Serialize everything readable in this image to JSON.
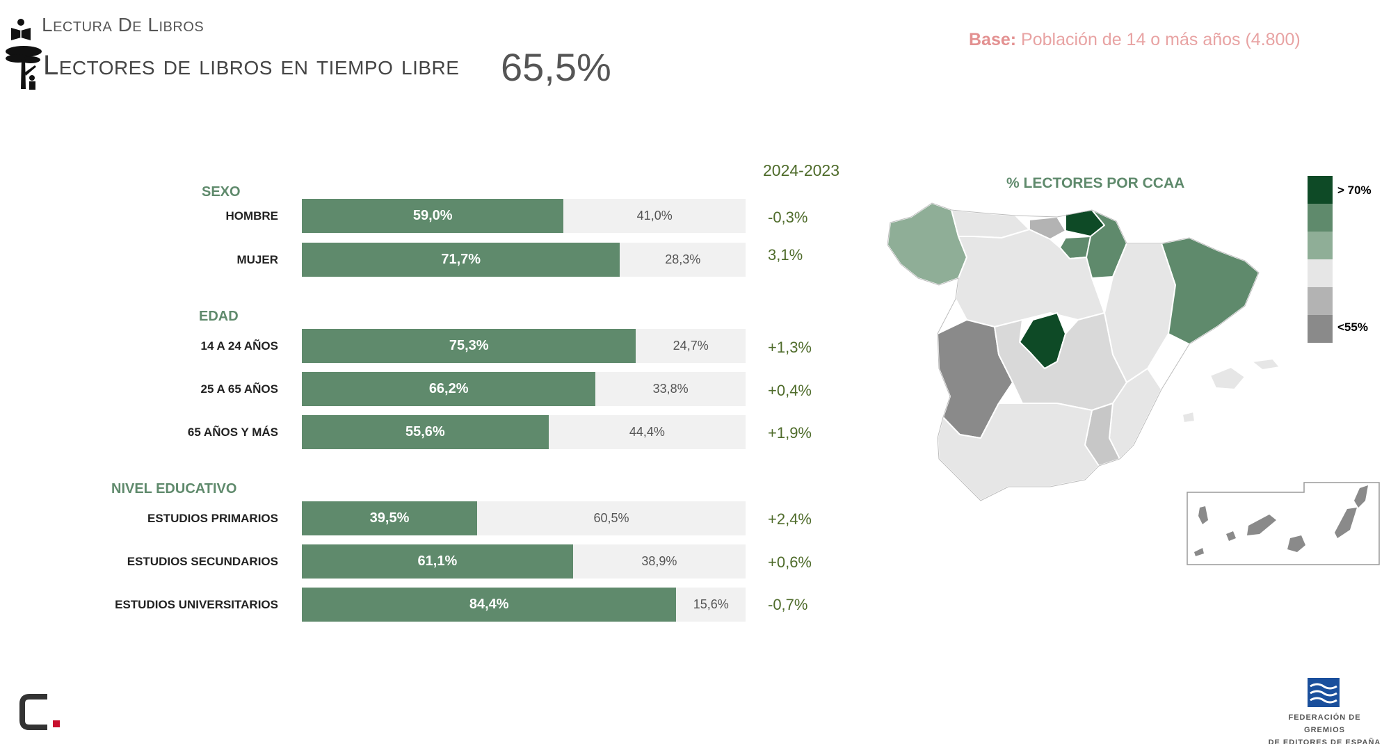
{
  "header": {
    "subtitle": "Lectura De Libros",
    "title": "Lectores de libros en tiempo libre",
    "total": "65,5%",
    "base_label": "Base:",
    "base_text": "Población de 14 o más años (4.800)"
  },
  "period_label": "2024-2023",
  "chart_data": {
    "type": "bar",
    "orientation": "horizontal",
    "stacked": true,
    "title": "Lectores de libros en tiempo libre",
    "groups": [
      {
        "name": "SEXO",
        "rows": [
          {
            "label": "HOMBRE",
            "value": 59.0,
            "value_label": "59,0%",
            "rest_label": "41,0%",
            "change": "-0,3%"
          },
          {
            "label": "MUJER",
            "value": 71.7,
            "value_label": "71,7%",
            "rest_label": "28,3%",
            "change": "3,1%"
          }
        ]
      },
      {
        "name": "EDAD",
        "rows": [
          {
            "label": "14 A 24 AÑOS",
            "value": 75.3,
            "value_label": "75,3%",
            "rest_label": "24,7%",
            "change": "+1,3%"
          },
          {
            "label": "25 A 65 AÑOS",
            "value": 66.2,
            "value_label": "66,2%",
            "rest_label": "33,8%",
            "change": "+0,4%"
          },
          {
            "label": "65 AÑOS Y MÁS",
            "value": 55.6,
            "value_label": "55,6%",
            "rest_label": "44,4%",
            "change": "+1,9%"
          }
        ]
      },
      {
        "name": "NIVEL EDUCATIVO",
        "rows": [
          {
            "label": "ESTUDIOS PRIMARIOS",
            "value": 39.5,
            "value_label": "39,5%",
            "rest_label": "60,5%",
            "change": "+2,4%"
          },
          {
            "label": "ESTUDIOS SECUNDARIOS",
            "value": 61.1,
            "value_label": "61,1%",
            "rest_label": "38,9%",
            "change": "+0,6%"
          },
          {
            "label": "ESTUDIOS UNIVERSITARIOS",
            "value": 84.4,
            "value_label": "84,4%",
            "rest_label": "15,6%",
            "change": "-0,7%"
          }
        ]
      }
    ],
    "xlim": [
      0,
      100
    ]
  },
  "map": {
    "title": "% LECTORES POR CCAA",
    "legend_high": "> 70%",
    "legend_low": "<55%",
    "legend_colors": [
      "#0e4a26",
      "#5f8a6c",
      "#8fae97",
      "#e6e6e6",
      "#b3b3b3",
      "#8a8a8a"
    ]
  },
  "footer": {
    "org_line1": "FEDERACIÓN DE GREMIOS",
    "org_line2": "DE EDITORES DE ESPAÑA"
  },
  "colors": {
    "accent": "#5f8a6c",
    "bar_bg": "#f1f1f1",
    "delta": "#4e6b2a",
    "base": "#e39191"
  }
}
